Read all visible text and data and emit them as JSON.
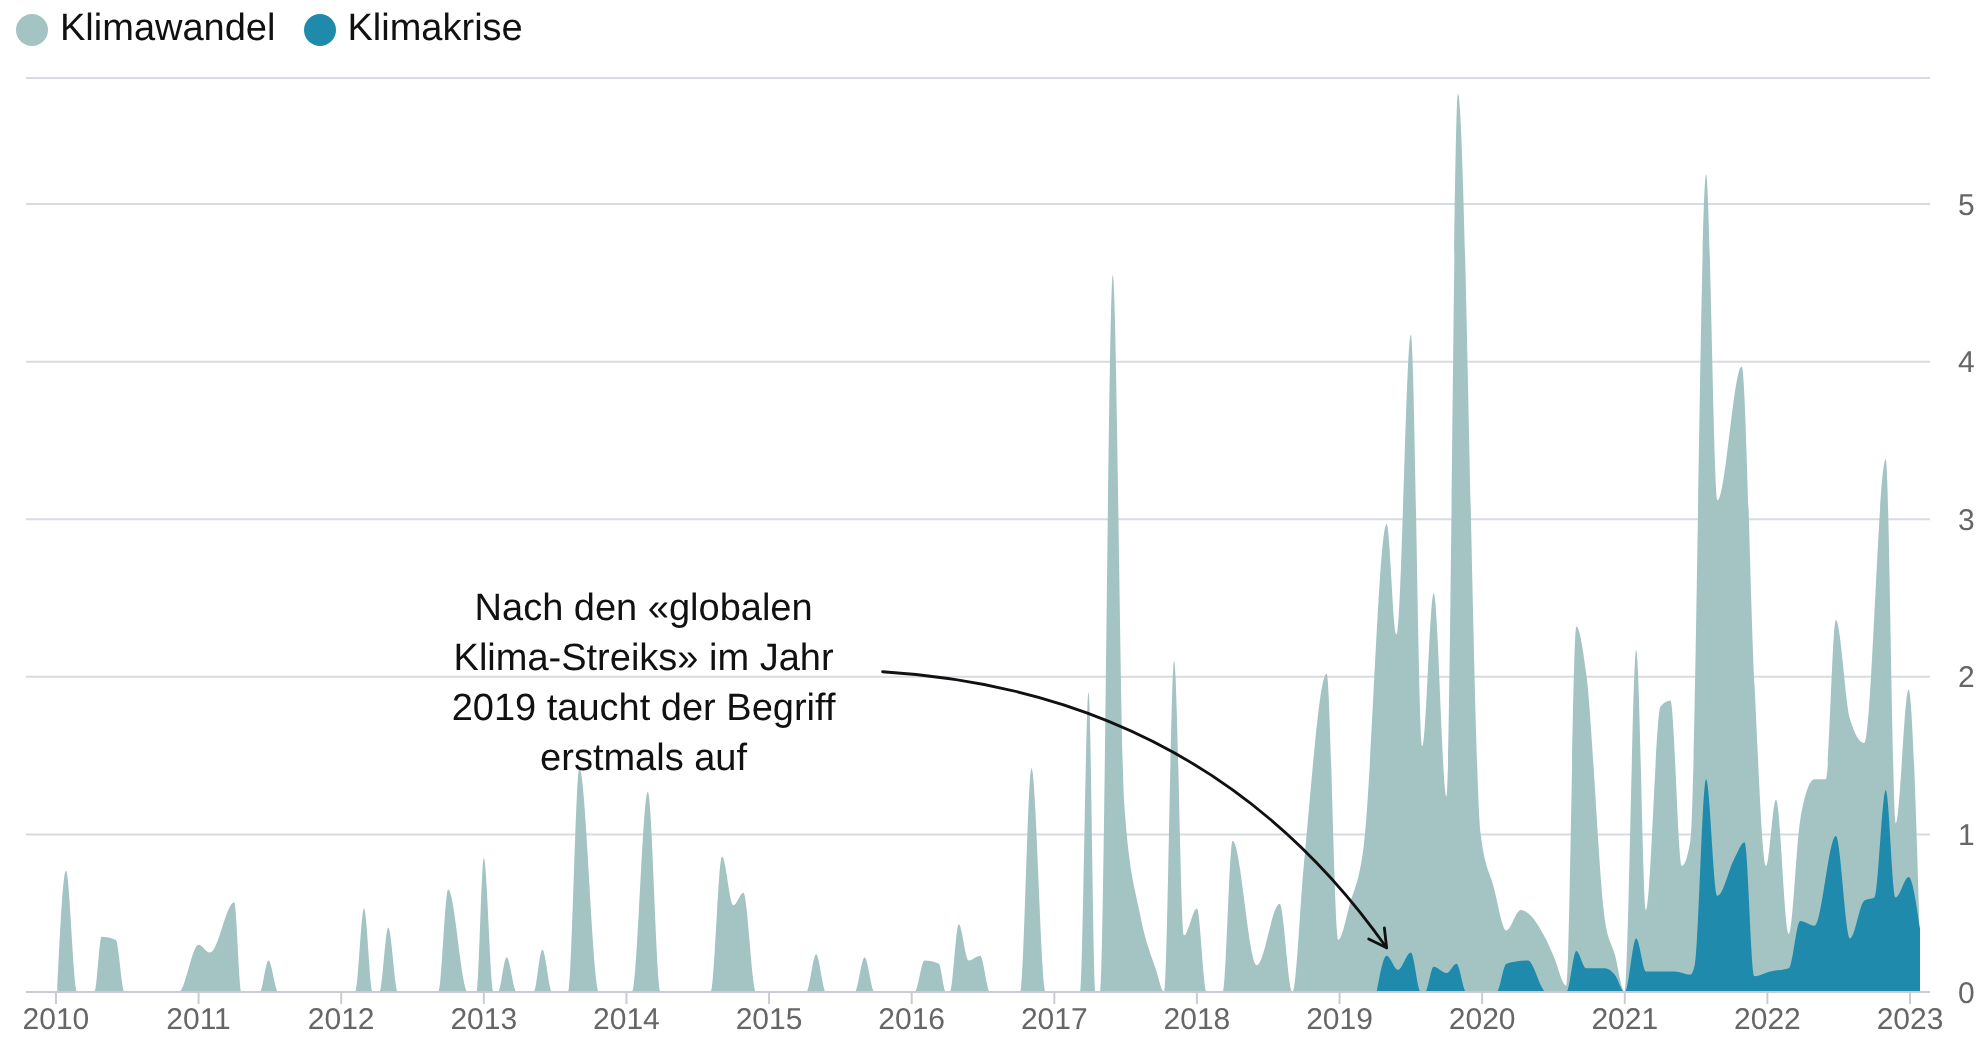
{
  "chart_data": {
    "type": "area",
    "legend": "top left",
    "grid": "y",
    "xlim": [
      2009.79,
      2023.14
    ],
    "xticks": [
      2010,
      2011,
      2012,
      2013,
      2014,
      2015,
      2016,
      2017,
      2018,
      2019,
      2020,
      2021,
      2022,
      2023
    ],
    "ylim": [
      0,
      5.8
    ],
    "yticks": [
      0,
      1,
      2,
      3,
      4,
      5
    ],
    "annotations": [
      {
        "text": "Nach den «globalen Klima-Streiks» im Jahr 2019 taucht der Begriff erstmals auf",
        "x": 2019.33,
        "y": 0.23
      }
    ],
    "series": [
      {
        "name": "Klimawandel",
        "color": "#a3c4c3",
        "x": [
          2010.01,
          2010.07,
          2010.15,
          2010.27,
          2010.32,
          2010.42,
          2010.48,
          2010.86,
          2011.0,
          2011.08,
          2011.25,
          2011.3,
          2011.43,
          2011.49,
          2011.56,
          2012.1,
          2012.16,
          2012.22,
          2012.27,
          2012.33,
          2012.4,
          2012.68,
          2012.75,
          2012.89,
          2012.95,
          2013.0,
          2013.07,
          2013.1,
          2013.16,
          2013.23,
          2013.35,
          2013.41,
          2013.48,
          2013.59,
          2013.67,
          2013.81,
          2014.04,
          2014.15,
          2014.24,
          2014.59,
          2014.67,
          2014.75,
          2014.82,
          2014.91,
          2015.26,
          2015.33,
          2015.4,
          2015.6,
          2015.67,
          2015.74,
          2016.02,
          2016.09,
          2016.19,
          2016.24,
          2016.27,
          2016.33,
          2016.4,
          2016.48,
          2016.55,
          2016.76,
          2016.84,
          2016.94,
          2017.18,
          2017.24,
          2017.29,
          2017.32,
          2017.41,
          2017.49,
          2017.6,
          2017.71,
          2017.77,
          2017.84,
          2017.91,
          2018.0,
          2018.07,
          2018.18,
          2018.25,
          2018.42,
          2018.58,
          2018.67,
          2018.75,
          2018.91,
          2018.99,
          2019.07,
          2019.17,
          2019.33,
          2019.4,
          2019.5,
          2019.58,
          2019.66,
          2019.75,
          2019.83,
          2019.99,
          2020.08,
          2020.17,
          2020.27,
          2020.45,
          2020.5,
          2020.59,
          2020.66,
          2020.73,
          2020.86,
          2020.93,
          2021.0,
          2021.08,
          2021.15,
          2021.25,
          2021.32,
          2021.4,
          2021.46,
          2021.57,
          2021.65,
          2021.82,
          2021.91,
          2021.99,
          2022.06,
          2022.15,
          2022.23,
          2022.33,
          2022.41,
          2022.48,
          2022.58,
          2022.68,
          2022.83,
          2022.9,
          2022.99,
          2023.07
        ],
        "values": [
          0,
          0.77,
          0,
          0,
          0.35,
          0.33,
          0,
          0,
          0.3,
          0.25,
          0.57,
          0,
          0,
          0.2,
          0,
          0,
          0.53,
          0,
          0,
          0.41,
          0,
          0,
          0.65,
          0,
          0,
          0.85,
          0,
          0,
          0.22,
          0,
          0,
          0.27,
          0,
          0,
          1.42,
          0,
          0,
          1.27,
          0,
          0,
          0.86,
          0.55,
          0.63,
          0,
          0,
          0.24,
          0,
          0,
          0.22,
          0,
          0,
          0.2,
          0.18,
          0,
          0,
          0.43,
          0.2,
          0.23,
          0,
          0,
          1.42,
          0,
          0,
          1.9,
          0,
          0,
          4.55,
          1.2,
          0.5,
          0.15,
          0,
          2.1,
          0.36,
          0.53,
          0,
          0,
          0.96,
          0.17,
          0.56,
          0,
          0.81,
          2.02,
          0.33,
          0.55,
          0.93,
          2.97,
          2.27,
          4.17,
          1.56,
          2.53,
          1.24,
          5.7,
          1.0,
          0.67,
          0.39,
          0.52,
          0.33,
          0.23,
          0.04,
          2.32,
          2.02,
          0.46,
          0.24,
          0,
          2.17,
          0.52,
          1.81,
          1.85,
          0.8,
          0.96,
          5.19,
          3.12,
          3.97,
          1.94,
          0.8,
          1.22,
          0.37,
          1.09,
          1.35,
          1.35,
          2.36,
          1.73,
          1.58,
          3.38,
          1.07,
          1.92,
          0.29
        ]
      },
      {
        "name": "Klimakrise",
        "color": "#1f8aab",
        "x": [
          2019.26,
          2019.33,
          2019.41,
          2019.5,
          2019.57,
          2019.6,
          2019.66,
          2019.75,
          2019.82,
          2019.89,
          2020.1,
          2020.17,
          2020.32,
          2020.45,
          2020.59,
          2020.66,
          2020.73,
          2020.86,
          2020.93,
          2021.0,
          2021.08,
          2021.15,
          2021.35,
          2021.46,
          2021.49,
          2021.57,
          2021.65,
          2021.77,
          2021.84,
          2021.91,
          2022.02,
          2022.15,
          2022.23,
          2022.33,
          2022.48,
          2022.58,
          2022.68,
          2022.75,
          2022.83,
          2022.9,
          2022.99,
          2023.07
        ],
        "values": [
          0,
          0.23,
          0.14,
          0.25,
          0,
          0,
          0.16,
          0.12,
          0.18,
          0,
          0,
          0.18,
          0.2,
          0,
          0,
          0.26,
          0.15,
          0.15,
          0.11,
          0,
          0.34,
          0.13,
          0.13,
          0.11,
          0.17,
          1.35,
          0.61,
          0.85,
          0.95,
          0.1,
          0.13,
          0.15,
          0.45,
          0.42,
          0.99,
          0.34,
          0.58,
          0.6,
          1.28,
          0.6,
          0.73,
          0.4
        ]
      }
    ]
  }
}
